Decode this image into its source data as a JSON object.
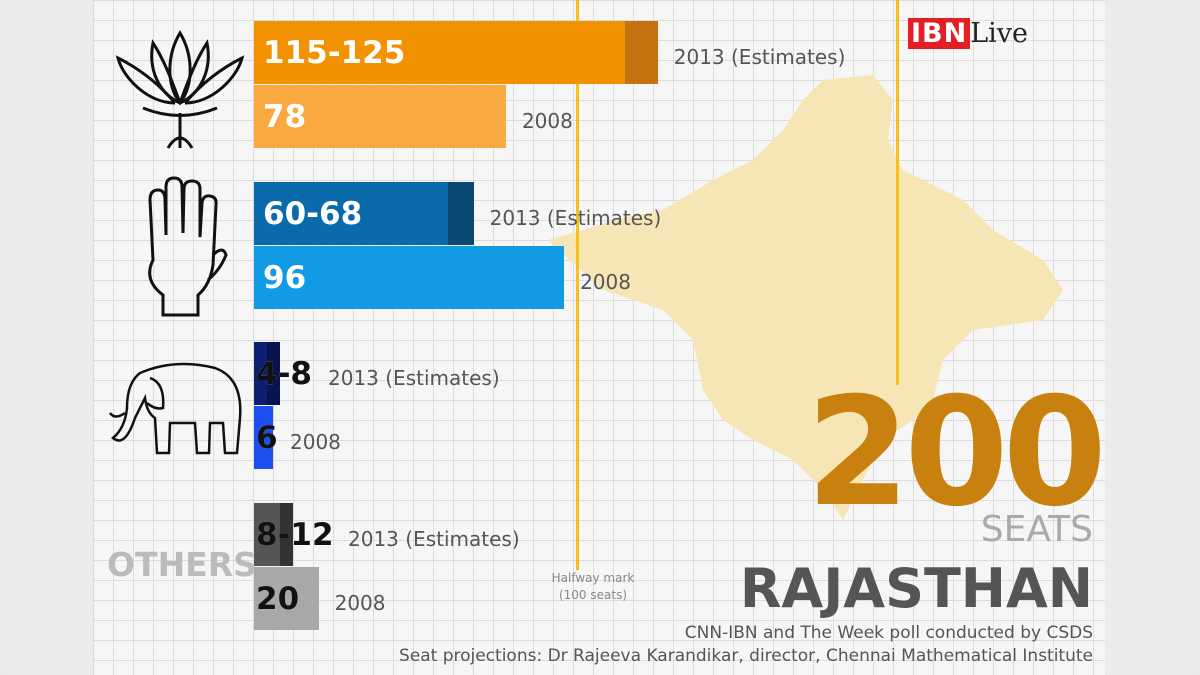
{
  "logo": {
    "text": "IBN Live"
  },
  "chart_data": {
    "type": "bar",
    "orientation": "horizontal",
    "total_seats": 200,
    "halfway": 100,
    "parties": [
      {
        "symbol": "lotus-icon",
        "label": "",
        "estimate_2013": {
          "low": 115,
          "high": 125,
          "label": "115-125",
          "year_label": "2013 (Estimates)"
        },
        "result_2008": {
          "value": 78,
          "label": "78",
          "year_label": "2008"
        },
        "colors": {
          "main": "#f39200",
          "range": "#c47310",
          "prev": "#f9a93f"
        }
      },
      {
        "symbol": "hand-icon",
        "label": "",
        "estimate_2013": {
          "low": 60,
          "high": 68,
          "label": "60-68",
          "year_label": "2013 (Estimates)"
        },
        "result_2008": {
          "value": 96,
          "label": "96",
          "year_label": "2008"
        },
        "colors": {
          "main": "#0a6aab",
          "range": "#0a4a72",
          "prev": "#129be3"
        }
      },
      {
        "symbol": "elephant-icon",
        "label": "",
        "estimate_2013": {
          "low": 4,
          "high": 8,
          "label": "4-8",
          "year_label": "2013 (Estimates)"
        },
        "result_2008": {
          "value": 6,
          "label": "6",
          "year_label": "2008"
        },
        "colors": {
          "main": "#0c1f72",
          "range": "#071450",
          "prev": "#1d4ff0"
        }
      },
      {
        "symbol": "",
        "label": "OTHERS",
        "estimate_2013": {
          "low": 8,
          "high": 12,
          "label": "8-12",
          "year_label": "2013 (Estimates)"
        },
        "result_2008": {
          "value": 20,
          "label": "20",
          "year_label": "2008"
        },
        "colors": {
          "main": "#555555",
          "range": "#333333",
          "prev": "#a8a8a8"
        }
      }
    ],
    "halfway_label": "Halfway mark",
    "halfway_sub": "(100 seats)"
  },
  "total": {
    "number": "200",
    "unit": "SEATS",
    "color": "#c8800f"
  },
  "state": "RAJASTHAN",
  "credits": [
    "CNN-IBN and The Week poll conducted by CSDS",
    "Seat projections: Dr Rajeeva Karandikar, director, Chennai Mathematical Institute"
  ]
}
